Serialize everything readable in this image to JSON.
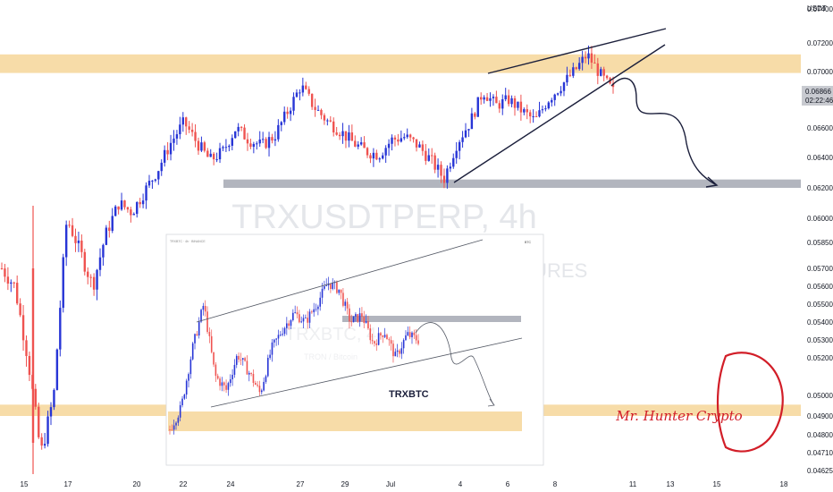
{
  "chart_data": [
    {
      "type": "candlestick",
      "symbol_watermark": "TRXUSDTPERP, 4h",
      "watermark_sub": "TURES",
      "currency_label": "USDT",
      "y_ticks": [
        "0.07400",
        "0.07200",
        "0.07000",
        "0.06600",
        "0.06400",
        "0.06200",
        "0.06000",
        "0.05850",
        "0.05700",
        "0.05600",
        "0.05500",
        "0.05400",
        "0.05300",
        "0.05200",
        "0.05000",
        "0.04900",
        "0.04800",
        "0.04710",
        "0.04625"
      ],
      "x_ticks": [
        "15",
        "17",
        "20",
        "22",
        "24",
        "27",
        "29",
        "Jul",
        "4",
        "6",
        "8",
        "11",
        "13",
        "15",
        "18"
      ],
      "last_price": "0.06866",
      "countdown": "02:22:46",
      "close_path": [
        0.057,
        0.056,
        0.052,
        0.047,
        0.05,
        0.06,
        0.058,
        0.056,
        0.059,
        0.061,
        0.0604,
        0.0618,
        0.0632,
        0.065,
        0.0664,
        0.065,
        0.0638,
        0.0644,
        0.066,
        0.0652,
        0.0648,
        0.0655,
        0.0672,
        0.069,
        0.0675,
        0.0665,
        0.0658,
        0.065,
        0.0644,
        0.0642,
        0.0652,
        0.0654,
        0.0648,
        0.0638,
        0.0626,
        0.065,
        0.0664,
        0.0686,
        0.0676,
        0.068,
        0.0672,
        0.0665,
        0.068,
        0.069,
        0.07,
        0.0712,
        0.0698,
        0.0686
      ],
      "zones": [
        {
          "name": "supply",
          "from": 0.0699,
          "to": 0.0712,
          "color": "#f7dca8"
        },
        {
          "name": "target",
          "from": 0.062,
          "to": 0.06255,
          "color": "#b2b5be"
        },
        {
          "name": "demand",
          "from": 0.049,
          "to": 0.04955,
          "color": "#f7dca8"
        }
      ],
      "colors": {
        "up": "#2735d6",
        "down": "#ef5350"
      }
    },
    {
      "type": "candlestick",
      "title": "TRXBTC",
      "symbol_watermark": "TRXBTC, 4",
      "watermark_sub": "TRON / Bitcoin",
      "currency_label": "BTC",
      "close_path": [
        0.1,
        0.22,
        0.55,
        0.8,
        0.4,
        0.32,
        0.52,
        0.42,
        0.3,
        0.55,
        0.66,
        0.75,
        0.7,
        0.8,
        0.92,
        0.88,
        0.7,
        0.74,
        0.58,
        0.65,
        0.5,
        0.63,
        0.6
      ],
      "colors": {
        "up": "#2735d6",
        "down": "#ef5350"
      }
    }
  ],
  "branding": {
    "logo_text": "Mr. Hunter Crypto"
  }
}
